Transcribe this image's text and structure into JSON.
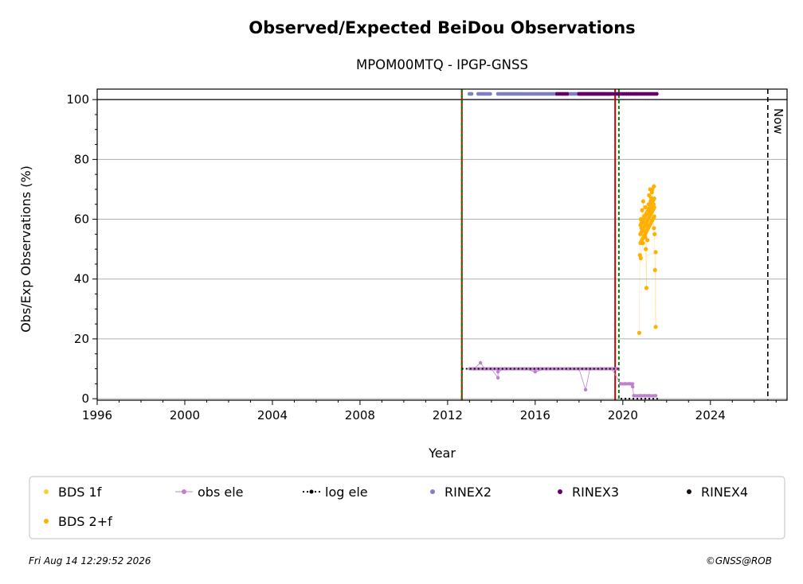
{
  "chart_data": {
    "type": "scatter",
    "title": "Observed/Expected BeiDou Observations",
    "subtitle": "MPOM00MTQ - IPGP-GNSS",
    "xlabel": "Year",
    "ylabel": "Obs/Exp Observations (%)",
    "xlim": [
      1996,
      2027.5
    ],
    "ylim": [
      -0.5,
      103.5
    ],
    "x_ticks": [
      1996,
      2000,
      2004,
      2008,
      2012,
      2016,
      2020,
      2024
    ],
    "y_ticks": [
      0,
      20,
      40,
      60,
      80,
      100
    ],
    "grid": "horizontal",
    "reference_line_y": 100,
    "now_line": {
      "x": 2026.62,
      "label": "Now"
    },
    "vertical_events": [
      {
        "x": 2012.65,
        "color": "#cc0000",
        "style": "solid"
      },
      {
        "x": 2012.65,
        "color": "#008000",
        "style": "dashed"
      },
      {
        "x": 2019.65,
        "color": "#cc0000",
        "style": "solid"
      },
      {
        "x": 2019.82,
        "color": "#008000",
        "style": "dashed"
      }
    ],
    "series": [
      {
        "name": "BDS 1f",
        "color": "#ffcc33",
        "marker": "dot",
        "points": []
      },
      {
        "name": "BDS 2+f",
        "color": "#ffb000",
        "marker": "dot",
        "points": [
          [
            2020.75,
            22
          ],
          [
            2020.78,
            48
          ],
          [
            2020.8,
            55
          ],
          [
            2020.82,
            60
          ],
          [
            2020.85,
            57
          ],
          [
            2020.88,
            63
          ],
          [
            2020.9,
            52
          ],
          [
            2020.93,
            66
          ],
          [
            2020.95,
            59
          ],
          [
            2020.98,
            61
          ],
          [
            2021.0,
            56
          ],
          [
            2021.03,
            64
          ],
          [
            2021.05,
            50
          ],
          [
            2021.08,
            37
          ],
          [
            2021.1,
            58
          ],
          [
            2021.13,
            62
          ],
          [
            2021.15,
            60
          ],
          [
            2021.18,
            65
          ],
          [
            2021.2,
            68
          ],
          [
            2021.23,
            63
          ],
          [
            2021.25,
            70
          ],
          [
            2021.28,
            66
          ],
          [
            2021.3,
            67
          ],
          [
            2021.33,
            69
          ],
          [
            2021.35,
            70
          ],
          [
            2021.38,
            64
          ],
          [
            2021.4,
            65
          ],
          [
            2021.42,
            57
          ],
          [
            2021.45,
            55
          ],
          [
            2021.47,
            43
          ],
          [
            2021.5,
            24
          ],
          [
            2021.5,
            49
          ],
          [
            2020.82,
            47
          ],
          [
            2020.92,
            52
          ],
          [
            2021.02,
            54
          ],
          [
            2021.12,
            53
          ],
          [
            2021.22,
            62
          ],
          [
            2021.32,
            67
          ],
          [
            2021.42,
            71
          ]
        ]
      },
      {
        "name": "obs ele",
        "color": "#c080d0",
        "marker": "dot-line",
        "points": [
          [
            2013.2,
            10
          ],
          [
            2013.5,
            12
          ],
          [
            2013.7,
            10
          ],
          [
            2014.0,
            10
          ],
          [
            2014.3,
            7
          ],
          [
            2014.3,
            9
          ],
          [
            2014.6,
            10
          ],
          [
            2015.0,
            10
          ],
          [
            2015.5,
            10
          ],
          [
            2016.0,
            9
          ],
          [
            2016.5,
            10
          ],
          [
            2017.0,
            10
          ],
          [
            2017.5,
            10
          ],
          [
            2018.0,
            10
          ],
          [
            2018.3,
            3
          ],
          [
            2018.5,
            10
          ],
          [
            2019.0,
            10
          ],
          [
            2019.5,
            10
          ],
          [
            2019.9,
            5
          ],
          [
            2020.1,
            5
          ],
          [
            2020.3,
            5
          ],
          [
            2020.45,
            4
          ],
          [
            2020.5,
            1
          ],
          [
            2020.8,
            1
          ],
          [
            2021.0,
            1
          ],
          [
            2021.2,
            1
          ],
          [
            2021.5,
            1
          ]
        ]
      },
      {
        "name": "log ele",
        "color": "#000000",
        "marker": "dot-dotted-line",
        "segments": [
          [
            [
              2012.65,
              10
            ],
            [
              2019.9,
              10
            ]
          ],
          [
            [
              2019.9,
              0
            ],
            [
              2021.6,
              0
            ]
          ]
        ]
      },
      {
        "name": "RINEX2",
        "color": "#8080c0",
        "marker": "dot",
        "ranges": [
          [
            2013.0,
            2013.15
          ],
          [
            2013.4,
            2014.0
          ],
          [
            2014.3,
            2017.0
          ],
          [
            2017.5,
            2019.5
          ]
        ]
      },
      {
        "name": "RINEX3",
        "color": "#660066",
        "marker": "dot",
        "ranges": [
          [
            2017.0,
            2017.5
          ],
          [
            2018.0,
            2021.6
          ]
        ]
      },
      {
        "name": "RINEX4",
        "color": "#1a0a1a",
        "marker": "dot",
        "ranges": []
      }
    ],
    "legend": {
      "placement": "bottom"
    }
  },
  "footer": {
    "timestamp": "Fri Aug 14 12:29:52 2026",
    "credit": "©GNSS@ROB"
  }
}
